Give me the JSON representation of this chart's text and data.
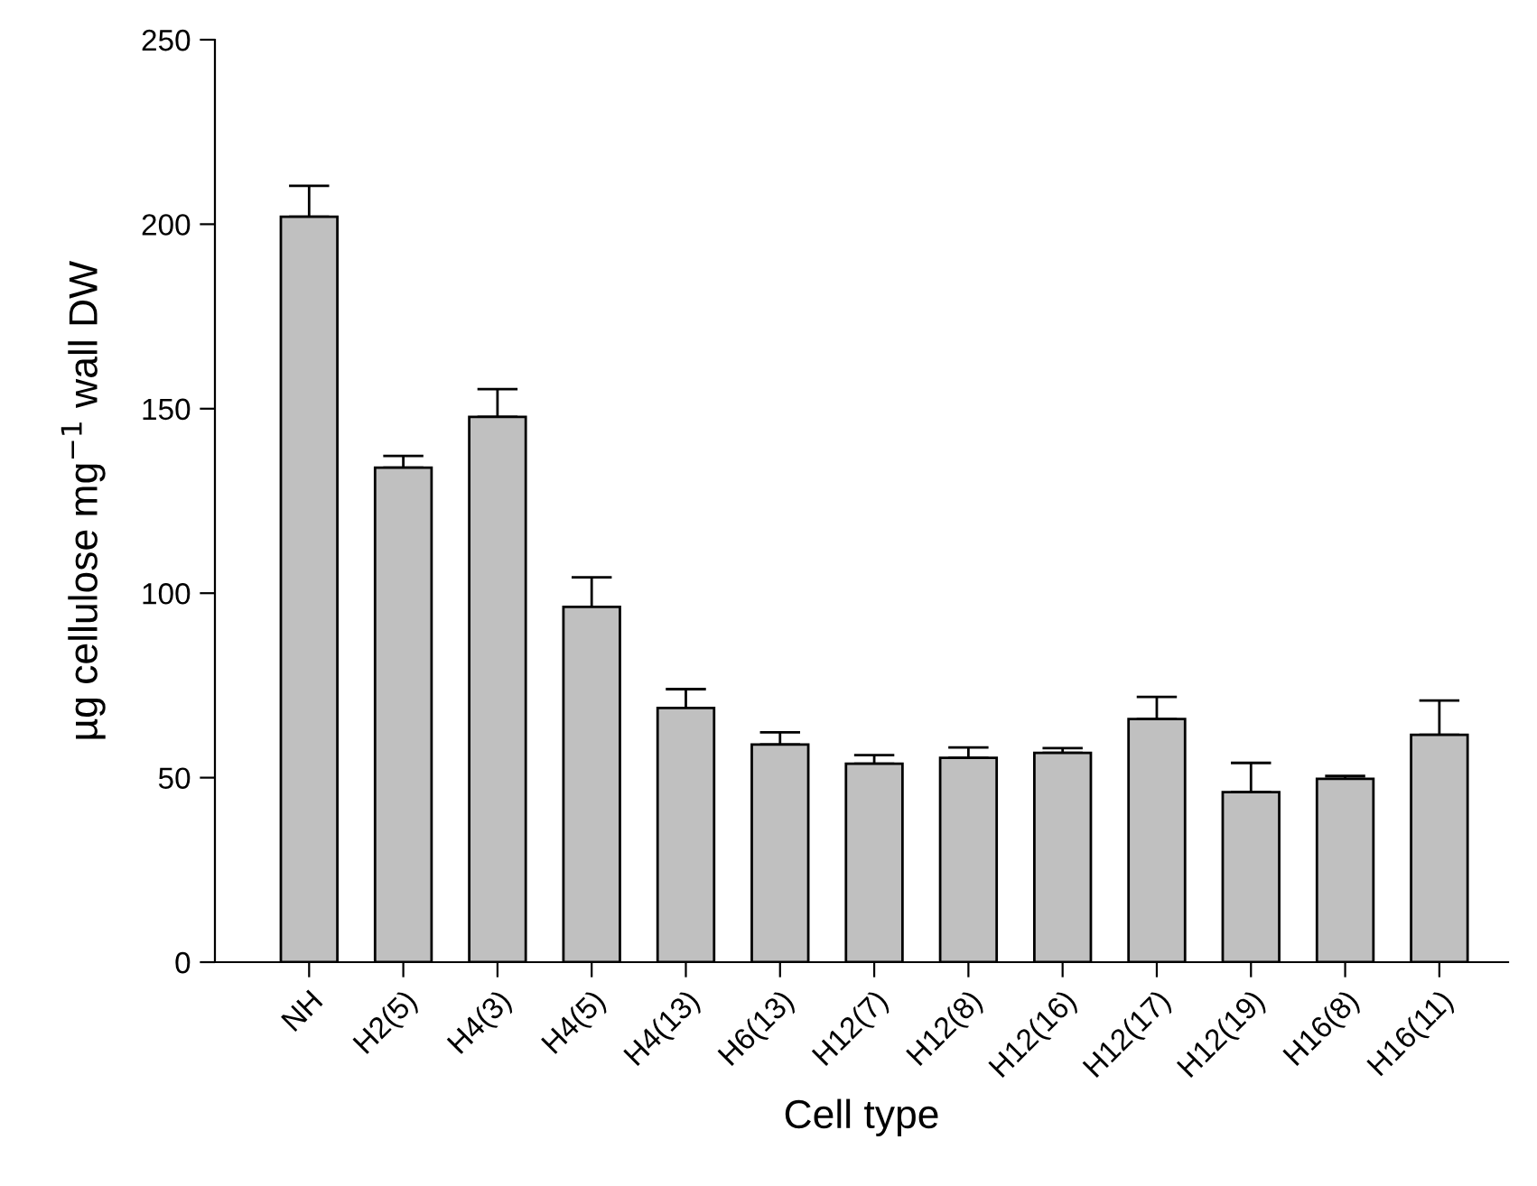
{
  "chart_data": {
    "type": "bar",
    "xlabel": "Cell type",
    "ylabel": "µg cellulose mg$^{−1}$ wall DW",
    "categories": [
      "NH",
      "H2(5)",
      "H4(3)",
      "H4(5)",
      "H4(13)",
      "H6(13)",
      "H12(7)",
      "H12(8)",
      "H12(16)",
      "H12(17)",
      "H12(19)",
      "H16(8)",
      "H16(11)"
    ],
    "values": [
      202.0,
      134.0,
      147.8,
      96.3,
      68.9,
      59.0,
      53.8,
      55.4,
      56.7,
      65.9,
      46.1,
      49.7,
      61.6
    ],
    "errors": [
      [
        202.0,
        210.4
      ],
      [
        134.0,
        137.2
      ],
      [
        147.8,
        155.3
      ],
      [
        96.3,
        104.3
      ],
      [
        68.9,
        74.0
      ],
      [
        59.0,
        62.3
      ],
      [
        53.8,
        56.1
      ],
      [
        55.4,
        58.2
      ],
      [
        56.7,
        58.0
      ],
      [
        65.9,
        71.9
      ],
      [
        46.1,
        54.0
      ],
      [
        49.7,
        50.5
      ],
      [
        61.6,
        70.9
      ]
    ],
    "color": "#c0c0c0",
    "ylim": [
      0,
      250
    ],
    "yticks": [
      0,
      50,
      100,
      150,
      200,
      250
    ],
    "grid": false,
    "legend": false
  }
}
